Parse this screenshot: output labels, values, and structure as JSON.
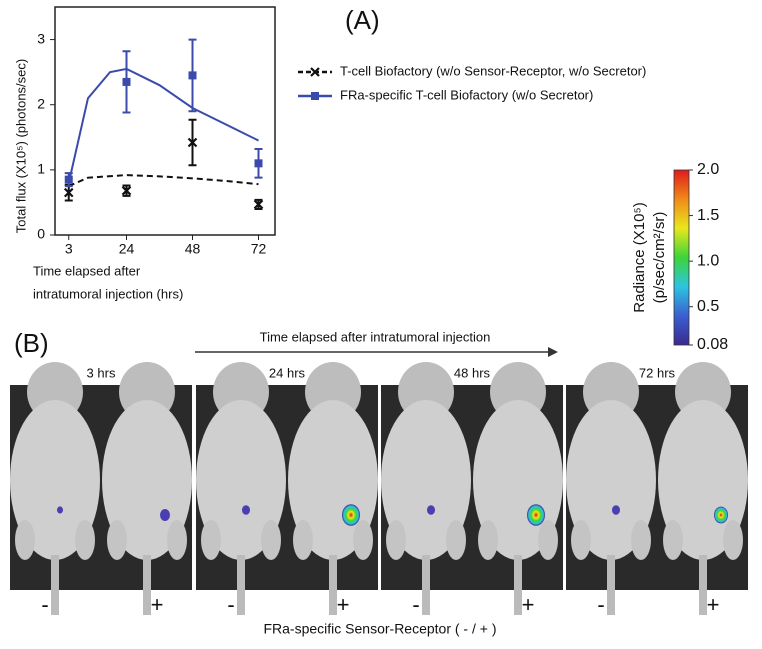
{
  "chart_data": [
    {
      "type": "scatter",
      "panel_label": "(A)",
      "ylabel": "Total flux (X10⁵) (photons/sec)",
      "xlabel": [
        "Time elapsed after",
        "intratumoral injection (hrs)"
      ],
      "x": [
        3,
        24,
        48,
        72
      ],
      "xlim": [
        -2,
        78
      ],
      "xticks": [
        3,
        24,
        48,
        72
      ],
      "ylim": [
        0,
        3.5
      ],
      "yticks": [
        0,
        1,
        2,
        3
      ],
      "series": [
        {
          "name": "T-cell Biofactory (w/o Sensor-Receptor, w/o Secretor)",
          "color": "#111111",
          "marker": "x",
          "linestyle": "dashed",
          "values": [
            0.65,
            0.68,
            1.42,
            0.47
          ],
          "errors": [
            0.12,
            0.08,
            0.35,
            0.07
          ],
          "curve": {
            "x": [
              3,
              10,
              24,
              36,
              48,
              60,
              72
            ],
            "values": [
              0.75,
              0.88,
              0.92,
              0.9,
              0.87,
              0.83,
              0.78
            ]
          }
        },
        {
          "name": "FRa-specific T-cell Biofactory (w/o Secretor)",
          "color": "#3b4bab",
          "marker": "square",
          "linestyle": "solid",
          "values": [
            0.85,
            2.35,
            2.45,
            1.1
          ],
          "errors": [
            0.1,
            0.47,
            0.55,
            0.22
          ],
          "curve": {
            "x": [
              3,
              10,
              18,
              24,
              36,
              48,
              60,
              72
            ],
            "values": [
              0.8,
              2.1,
              2.5,
              2.55,
              2.3,
              1.95,
              1.7,
              1.45
            ]
          }
        }
      ]
    },
    {
      "type": "colorbar",
      "ylabel": [
        "Radiance (X10⁵)",
        "(p/sec/cm²/sr)"
      ],
      "ylim": [
        0.08,
        2.0
      ],
      "yticks": [
        0.08,
        {
          "value": 0.5,
          "label": "0.5"
        },
        {
          "value": 1,
          "label": "1.0"
        },
        {
          "value": 1.5,
          "label": "1.5"
        },
        {
          "value": 2,
          "label": "2.0"
        }
      ],
      "colors": [
        "#3b2a8f",
        "#3a5fd0",
        "#2ec4e0",
        "#3dd43a",
        "#e8e81c",
        "#f08a1a",
        "#e01b1b"
      ]
    }
  ],
  "panel_b": {
    "panel_label": "(B)",
    "arrow_text": "Time elapsed after intratumoral injection",
    "times": [
      "3 hrs",
      "24 hrs",
      "48 hrs",
      "72 hrs"
    ],
    "signs": [
      "-",
      "+",
      "-",
      "+",
      "-",
      "+",
      "-",
      "+"
    ],
    "footer": "FRa-specific Sensor-Receptor ( - / + )"
  }
}
